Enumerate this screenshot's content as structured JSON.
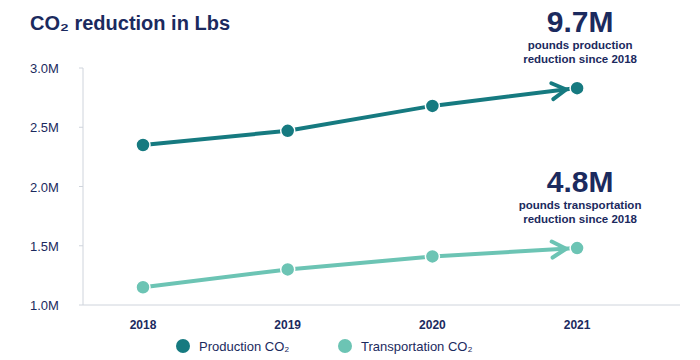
{
  "chart_data": {
    "type": "line",
    "title": "CO₂ reduction in Lbs",
    "categories": [
      "2018",
      "2019",
      "2020",
      "2021"
    ],
    "series": [
      {
        "name": "Production CO₂",
        "color": "#167a80",
        "marker": "circle",
        "values": [
          2350000,
          2470000,
          2680000,
          2830000
        ]
      },
      {
        "name": "Transportation CO₂",
        "color": "#6cc4b4",
        "marker": "circle",
        "values": [
          1150000,
          1300000,
          1410000,
          1480000
        ]
      }
    ],
    "annotations": [
      {
        "text": "9.7M",
        "note": "pounds production reduction since 2018"
      },
      {
        "text": "4.8M",
        "note": "pounds transportation reduction since 2018"
      }
    ],
    "ylim": [
      1000000,
      3000000
    ],
    "yticks": [
      {
        "value": 1000000,
        "label": "1.0M"
      },
      {
        "value": 1500000,
        "label": "1.5M"
      },
      {
        "value": 2000000,
        "label": "2.0M"
      },
      {
        "value": 2500000,
        "label": "2.5M"
      },
      {
        "value": 3000000,
        "label": "3.0M"
      }
    ],
    "grid": false,
    "legend": "bottom"
  }
}
